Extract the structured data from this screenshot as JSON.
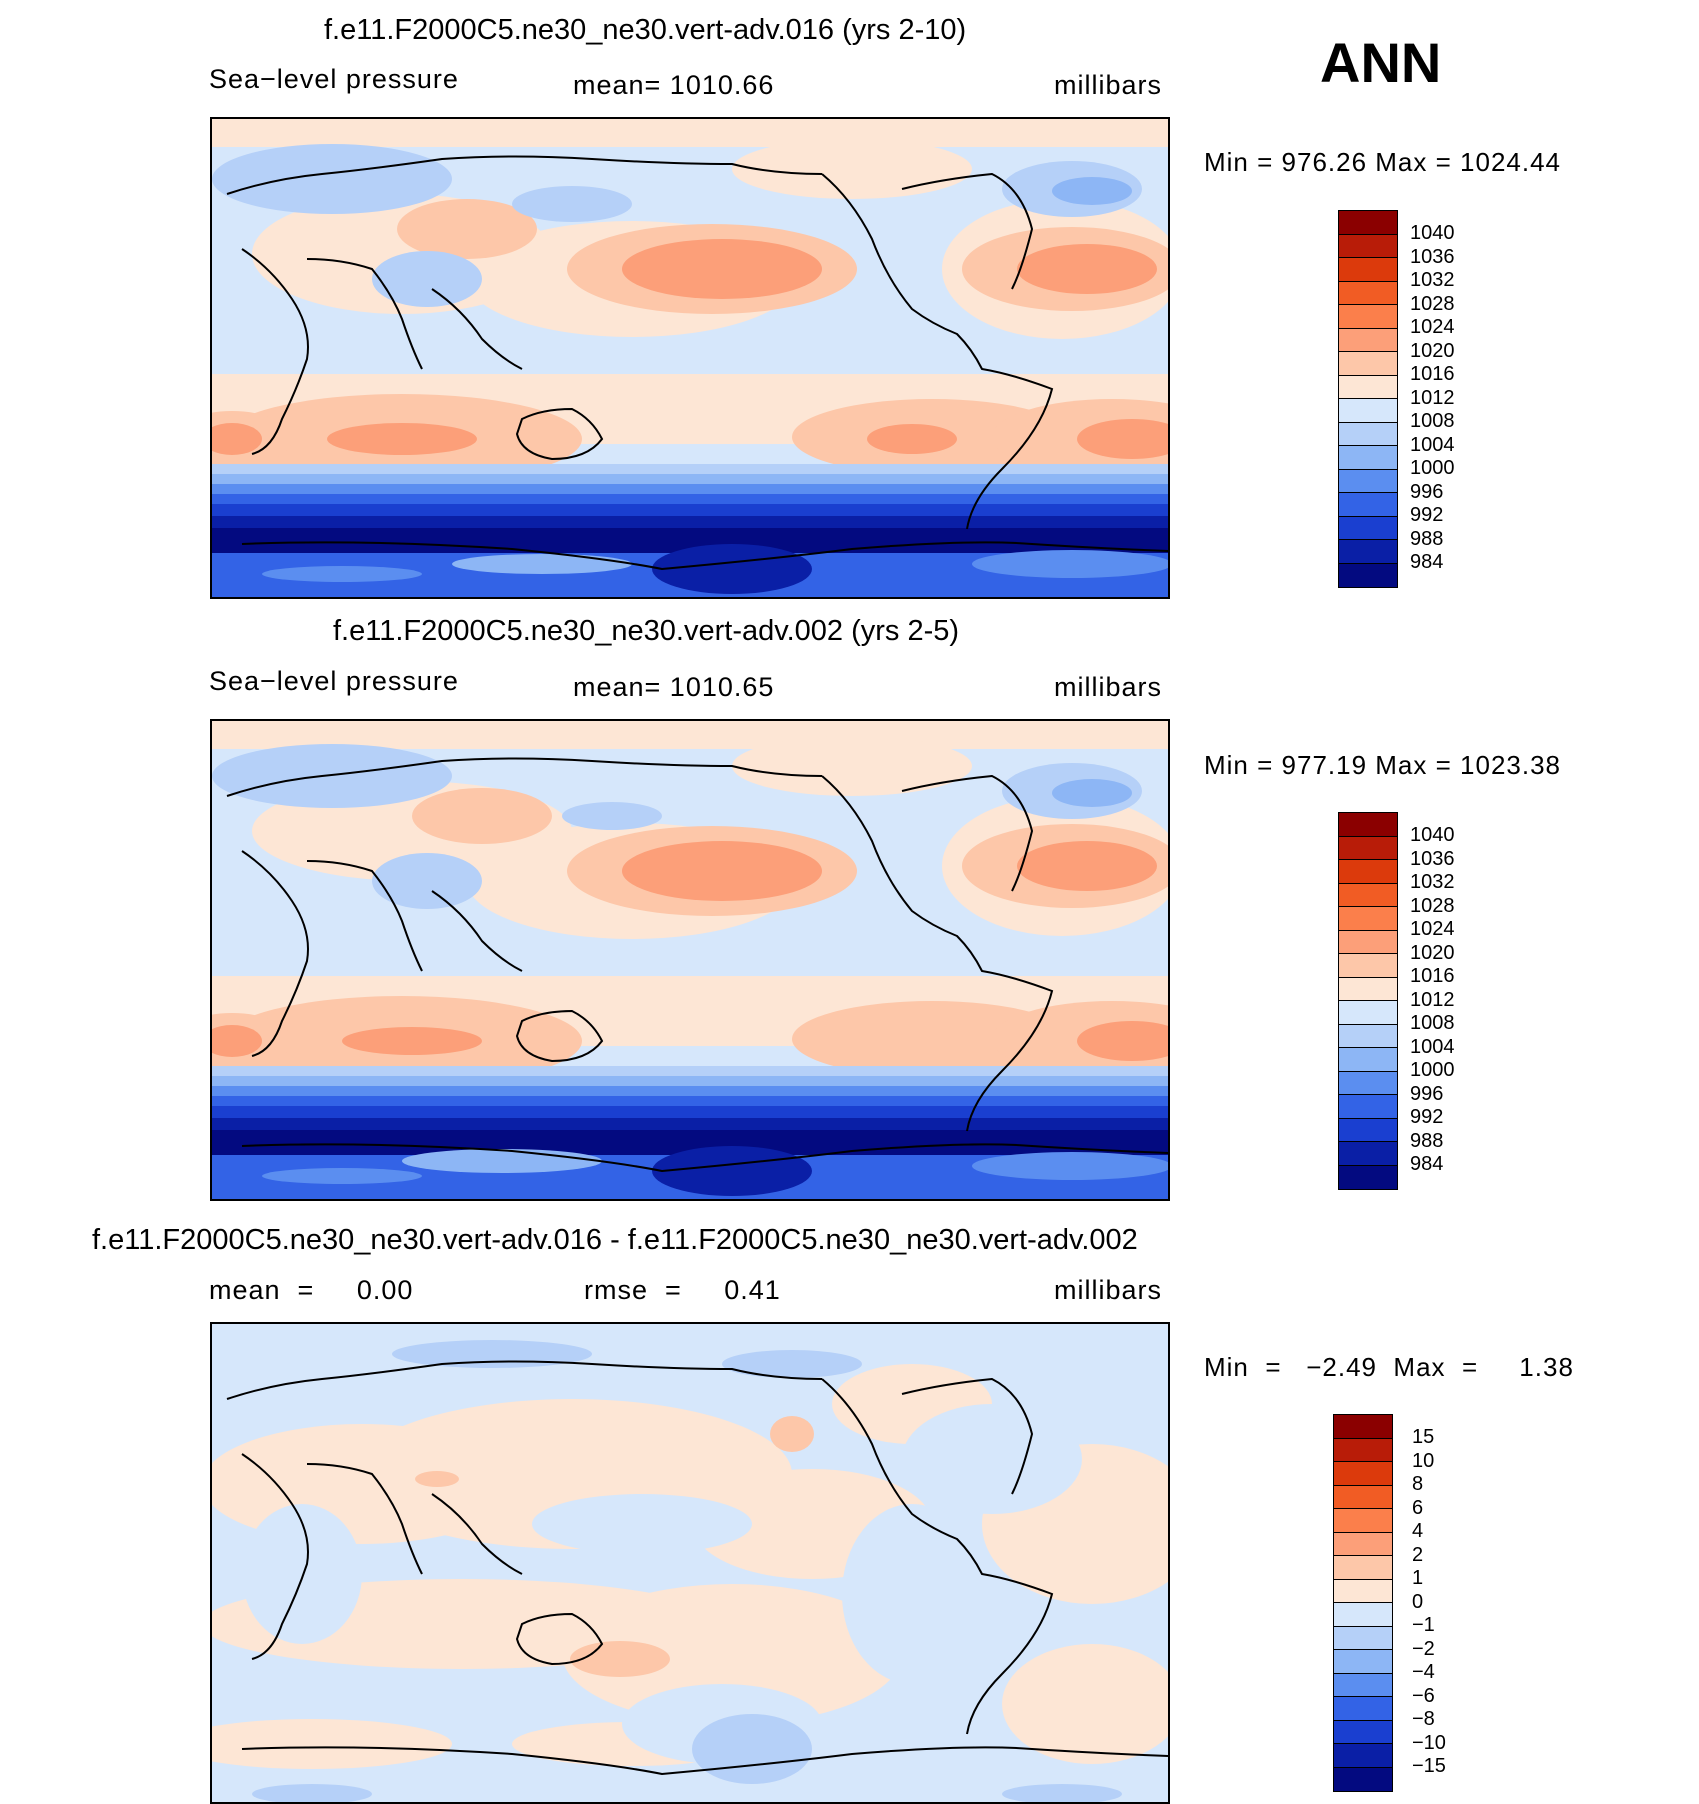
{
  "season": "ANN",
  "panels": [
    {
      "title": "f.e11.F2000C5.ne30_ne30.vert-adv.016 (yrs 2-10)",
      "header_left": "Sea−level pressure",
      "header_mid": "mean=  1010.66",
      "header_right": "millibars",
      "minmax": "Min  =  976.26  Max  =  1024.44",
      "levels": [
        "1040",
        "1036",
        "1032",
        "1028",
        "1024",
        "1020",
        "1016",
        "1012",
        "1008",
        "1004",
        "1000",
        "996",
        "992",
        "988",
        "984"
      ]
    },
    {
      "title": "f.e11.F2000C5.ne30_ne30.vert-adv.002 (yrs 2-5)",
      "header_left": "Sea−level pressure",
      "header_mid": "mean=  1010.65",
      "header_right": "millibars",
      "minmax": "Min  =  977.19  Max  =  1023.38",
      "levels": [
        "1040",
        "1036",
        "1032",
        "1028",
        "1024",
        "1020",
        "1016",
        "1012",
        "1008",
        "1004",
        "1000",
        "996",
        "992",
        "988",
        "984"
      ]
    },
    {
      "title": "f.e11.F2000C5.ne30_ne30.vert-adv.016 - f.e11.F2000C5.ne30_ne30.vert-adv.002",
      "header_left": "mean  =     0.00",
      "header_mid": "rmse  =     0.41",
      "header_right": "millibars",
      "minmax": "Min  =   −2.49  Max  =     1.38",
      "levels": [
        "15",
        "10",
        "8",
        "6",
        "4",
        "2",
        "1",
        "0",
        "−1",
        "−2",
        "−4",
        "−6",
        "−8",
        "−10",
        "−15"
      ]
    }
  ],
  "colorbar_colors": [
    "#8b0000",
    "#b81c08",
    "#dc3a0c",
    "#f15c24",
    "#fb7f4b",
    "#fc9f79",
    "#fdc7a9",
    "#fde6d5",
    "#d6e7fb",
    "#b5d0f8",
    "#8db6f5",
    "#5b8ef0",
    "#3363e6",
    "#1a3fd0",
    "#0a1fa6",
    "#030a80"
  ]
}
